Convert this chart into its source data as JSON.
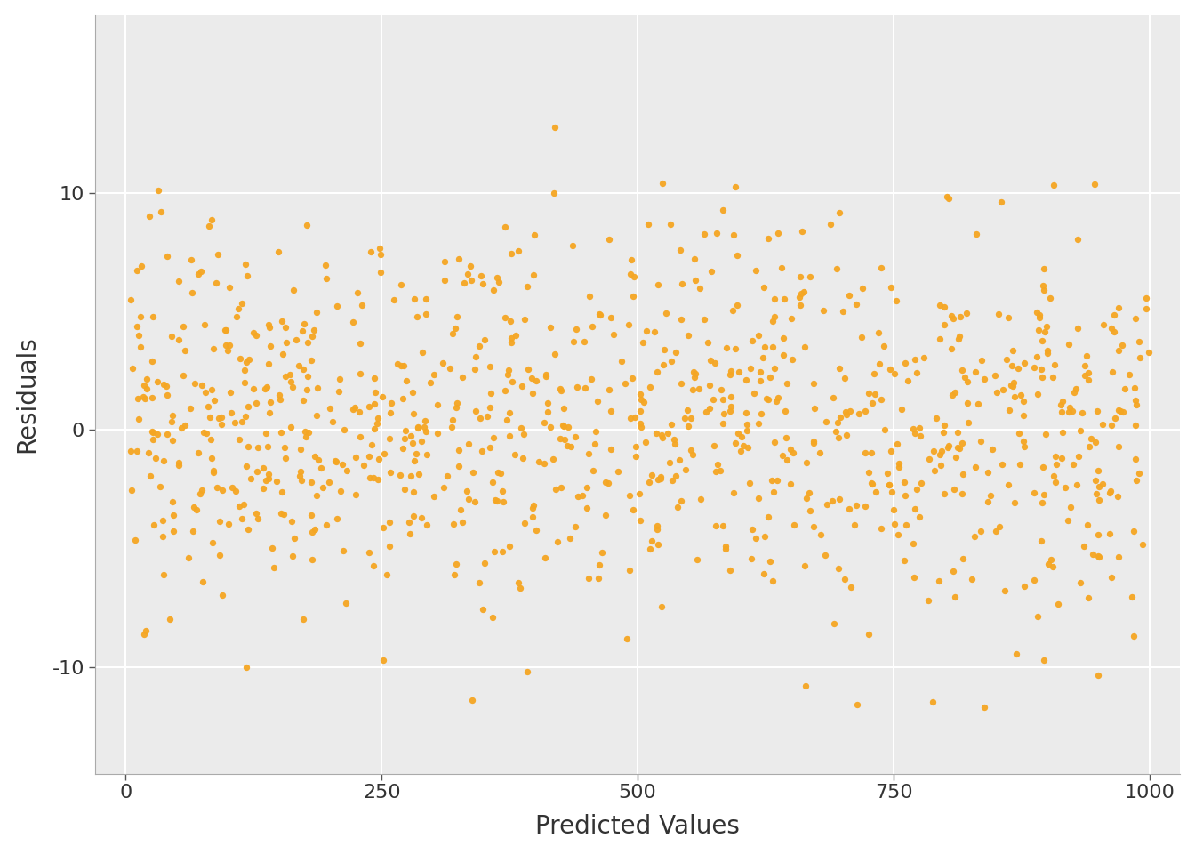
{
  "title": "",
  "xlabel": "Predicted Values",
  "ylabel": "Residuals",
  "xlim": [
    -30,
    1030
  ],
  "ylim": [
    -14.5,
    17.5
  ],
  "x_ticks": [
    0,
    250,
    500,
    750,
    1000
  ],
  "y_ticks": [
    -10,
    0,
    10
  ],
  "dot_color": "#F5A623",
  "dot_size": 28,
  "dot_alpha": 0.95,
  "panel_background_color": "#EBEBEB",
  "figure_background_color": "#FFFFFF",
  "grid_color": "#FFFFFF",
  "grid_linewidth": 1.5,
  "n_points": 1000,
  "seed": 42,
  "y_std": 4.0,
  "xlabel_fontsize": 20,
  "ylabel_fontsize": 20,
  "tick_fontsize": 16,
  "tick_color": "#555555"
}
